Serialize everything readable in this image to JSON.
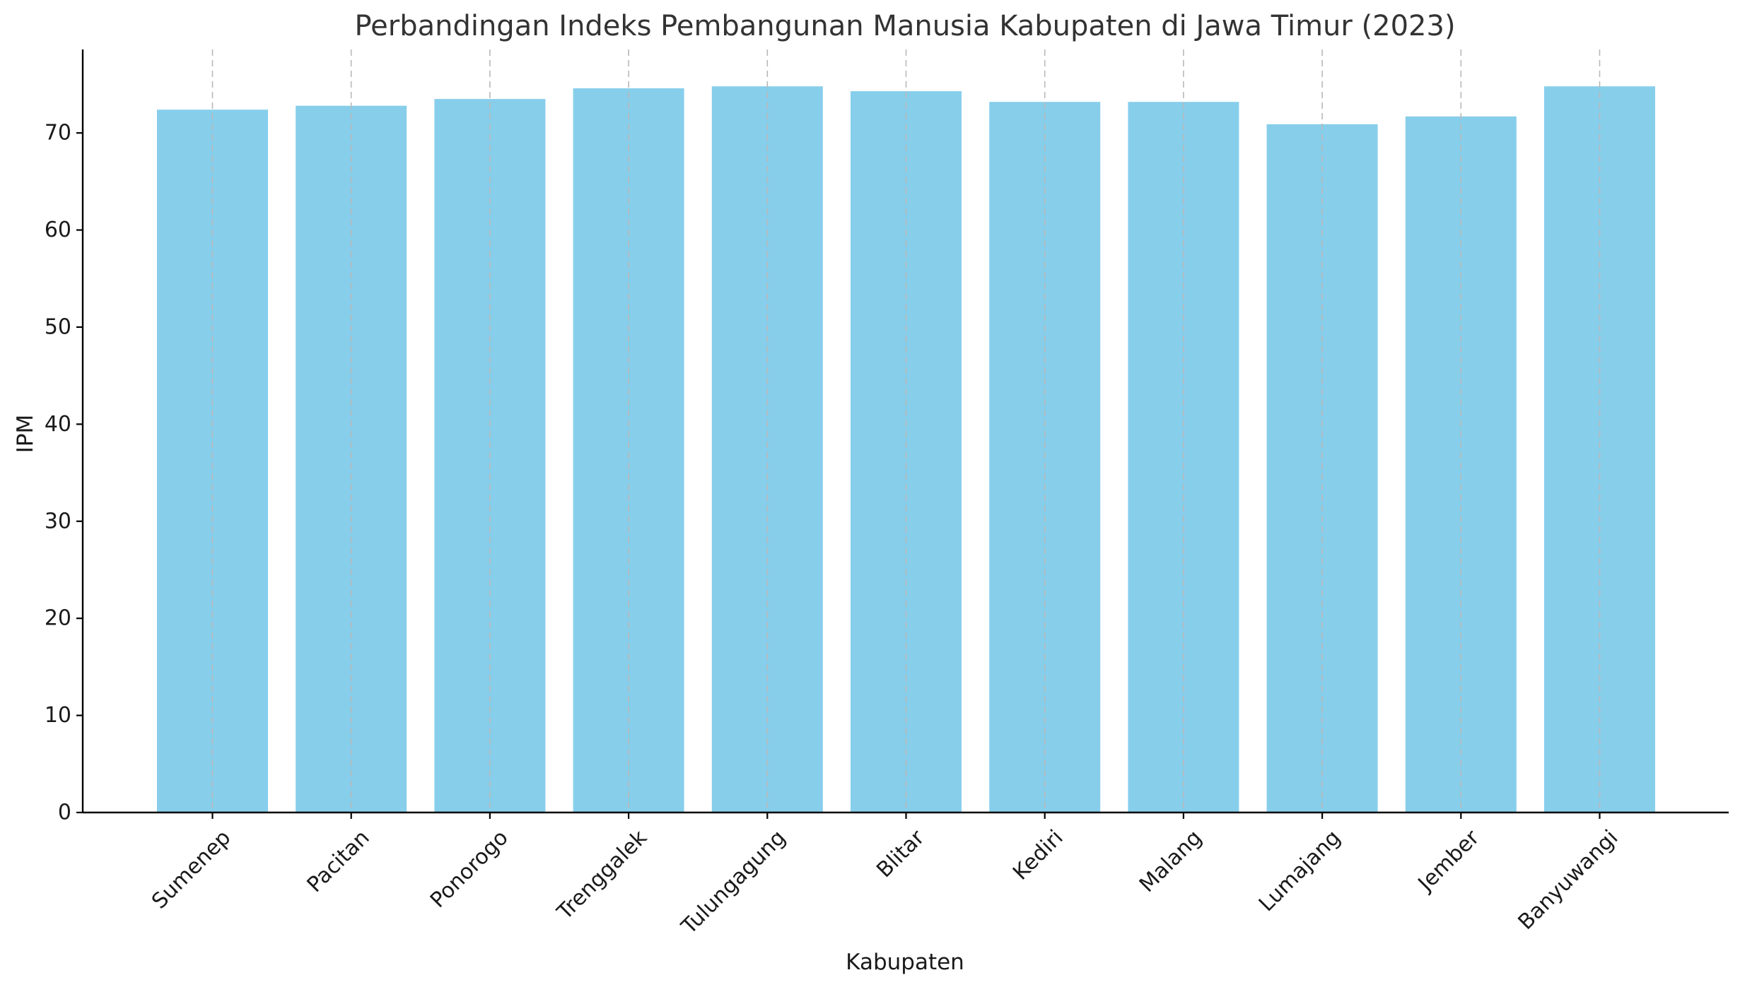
{
  "chart_data": {
    "type": "bar",
    "title": "Perbandingan Indeks Pembangunan Manusia Kabupaten di Jawa Timur (2023)",
    "xlabel": "Kabupaten",
    "ylabel": "IPM",
    "categories": [
      "Sumenep",
      "Pacitan",
      "Ponorogo",
      "Trenggalek",
      "Tulungagung",
      "Blitar",
      "Kediri",
      "Malang",
      "Lumajang",
      "Jember",
      "Banyuwangi"
    ],
    "values": [
      72.4,
      72.8,
      73.5,
      74.6,
      74.8,
      74.3,
      73.2,
      73.2,
      70.9,
      71.7,
      74.8
    ],
    "ylim": [
      0,
      78.6
    ],
    "yticks": [
      0,
      10,
      20,
      30,
      40,
      50,
      60,
      70
    ],
    "grid": "vertical dashed at categories",
    "bar_color": "#87ceeb",
    "legend": "none"
  }
}
